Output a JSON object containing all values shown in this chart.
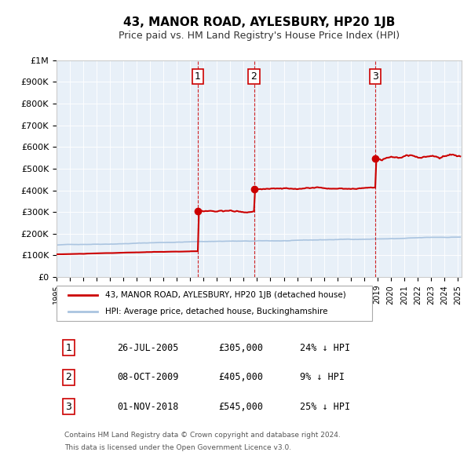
{
  "title": "43, MANOR ROAD, AYLESBURY, HP20 1JB",
  "subtitle": "Price paid vs. HM Land Registry's House Price Index (HPI)",
  "legend_line1": "43, MANOR ROAD, AYLESBURY, HP20 1JB (detached house)",
  "legend_line2": "HPI: Average price, detached house, Buckinghamshire",
  "footer_line1": "Contains HM Land Registry data © Crown copyright and database right 2024.",
  "footer_line2": "This data is licensed under the Open Government Licence v3.0.",
  "transactions": [
    {
      "num": 1,
      "date": "26-JUL-2005",
      "price": "£305,000",
      "pct": "24%",
      "year": 2005.57
    },
    {
      "num": 2,
      "date": "08-OCT-2009",
      "price": "£405,000",
      "pct": "9%",
      "year": 2009.77
    },
    {
      "num": 3,
      "date": "01-NOV-2018",
      "price": "£545,000",
      "pct": "25%",
      "year": 2018.84
    }
  ],
  "sale_years": [
    2005.57,
    2009.77,
    2018.84
  ],
  "sale_prices": [
    305000,
    405000,
    545000
  ],
  "hpi_color": "#aac4e0",
  "price_color": "#cc0000",
  "dot_color": "#cc0000",
  "vline_color": "#cc0000",
  "background_color": "#e8f0f8",
  "ylim": [
    0,
    1000000
  ],
  "xlim_start": 1995,
  "xlim_end": 2025,
  "ylabel_ticks": [
    0,
    100000,
    200000,
    300000,
    400000,
    500000,
    600000,
    700000,
    800000,
    900000,
    1000000
  ],
  "ytick_labels": [
    "£0",
    "£100K",
    "£200K",
    "£300K",
    "£400K",
    "£500K",
    "£600K",
    "£700K",
    "£800K",
    "£900K",
    "£1M"
  ]
}
